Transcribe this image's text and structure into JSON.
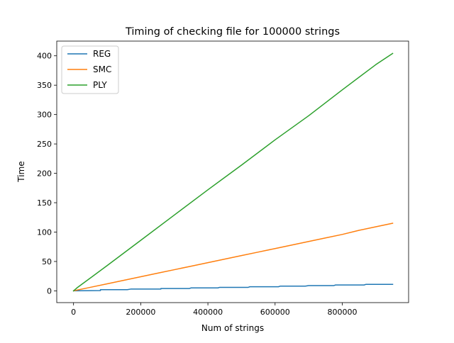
{
  "chart_data": {
    "type": "line",
    "title": "Timing of checking file for 100000 strings",
    "xlabel": "Num of strings",
    "ylabel": "Time",
    "xlim": [
      -50000,
      997500
    ],
    "ylim": [
      -20,
      425
    ],
    "xticks": [
      0,
      200000,
      400000,
      600000,
      800000
    ],
    "yticks": [
      0,
      50,
      100,
      150,
      200,
      250,
      300,
      350,
      400
    ],
    "grid": false,
    "legend_position": "top-left",
    "series": [
      {
        "name": "REG",
        "color": "#1f77b4",
        "x": [
          0,
          80000,
          80000,
          160000,
          170000,
          260000,
          260000,
          345000,
          350000,
          430000,
          435000,
          520000,
          525000,
          610000,
          615000,
          690000,
          700000,
          775000,
          780000,
          865000,
          870000,
          950000
        ],
        "y": [
          0,
          0.5,
          2,
          2,
          3,
          3,
          4,
          4,
          5,
          5,
          6,
          6,
          7,
          7,
          8,
          8,
          9,
          9,
          10,
          10,
          11,
          11
        ]
      },
      {
        "name": "SMC",
        "color": "#ff7f0e",
        "x": [
          0,
          50000,
          100000,
          150000,
          200000,
          250000,
          300000,
          350000,
          400000,
          450000,
          500000,
          550000,
          600000,
          650000,
          700000,
          750000,
          800000,
          850000,
          900000,
          950000
        ],
        "y": [
          0,
          6,
          12,
          18,
          24,
          30,
          36,
          42,
          48,
          54,
          60,
          66,
          72,
          78,
          84,
          90,
          96,
          103,
          109,
          115
        ]
      },
      {
        "name": "PLY",
        "color": "#2ca02c",
        "x": [
          0,
          10000,
          100000,
          200000,
          300000,
          400000,
          500000,
          600000,
          700000,
          800000,
          900000,
          950000
        ],
        "y": [
          0,
          5,
          43,
          86,
          129,
          172,
          214,
          257,
          298,
          342,
          385,
          404
        ]
      }
    ]
  }
}
